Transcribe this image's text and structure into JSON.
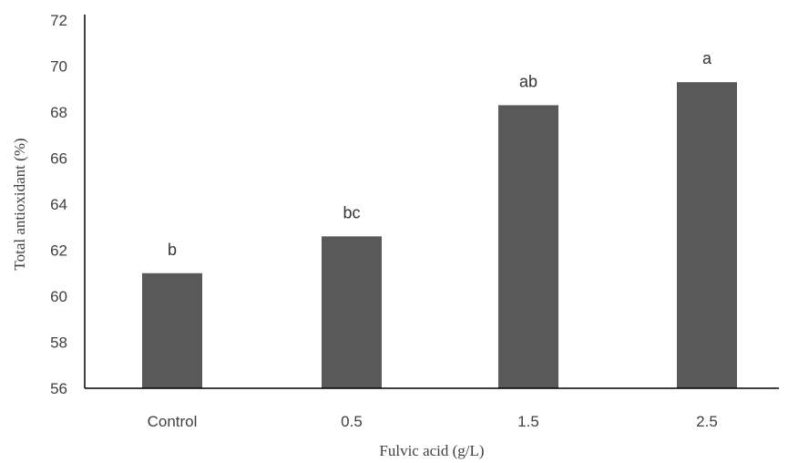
{
  "chart_data": {
    "type": "bar",
    "categories": [
      "Control",
      "0.5",
      "1.5",
      "2.5"
    ],
    "values": [
      61.0,
      62.6,
      68.3,
      69.3
    ],
    "data_labels": [
      "b",
      "bc",
      "ab",
      "a"
    ],
    "xlabel": "Fulvic acid (g/L)",
    "ylabel": "Total antioxidant (%)",
    "ylim": [
      56,
      72
    ],
    "yticks": [
      56,
      58,
      60,
      62,
      64,
      66,
      68,
      70,
      72
    ],
    "grid": false,
    "legend": "none",
    "bar_color": "#595959",
    "axis_color": "#000000"
  }
}
